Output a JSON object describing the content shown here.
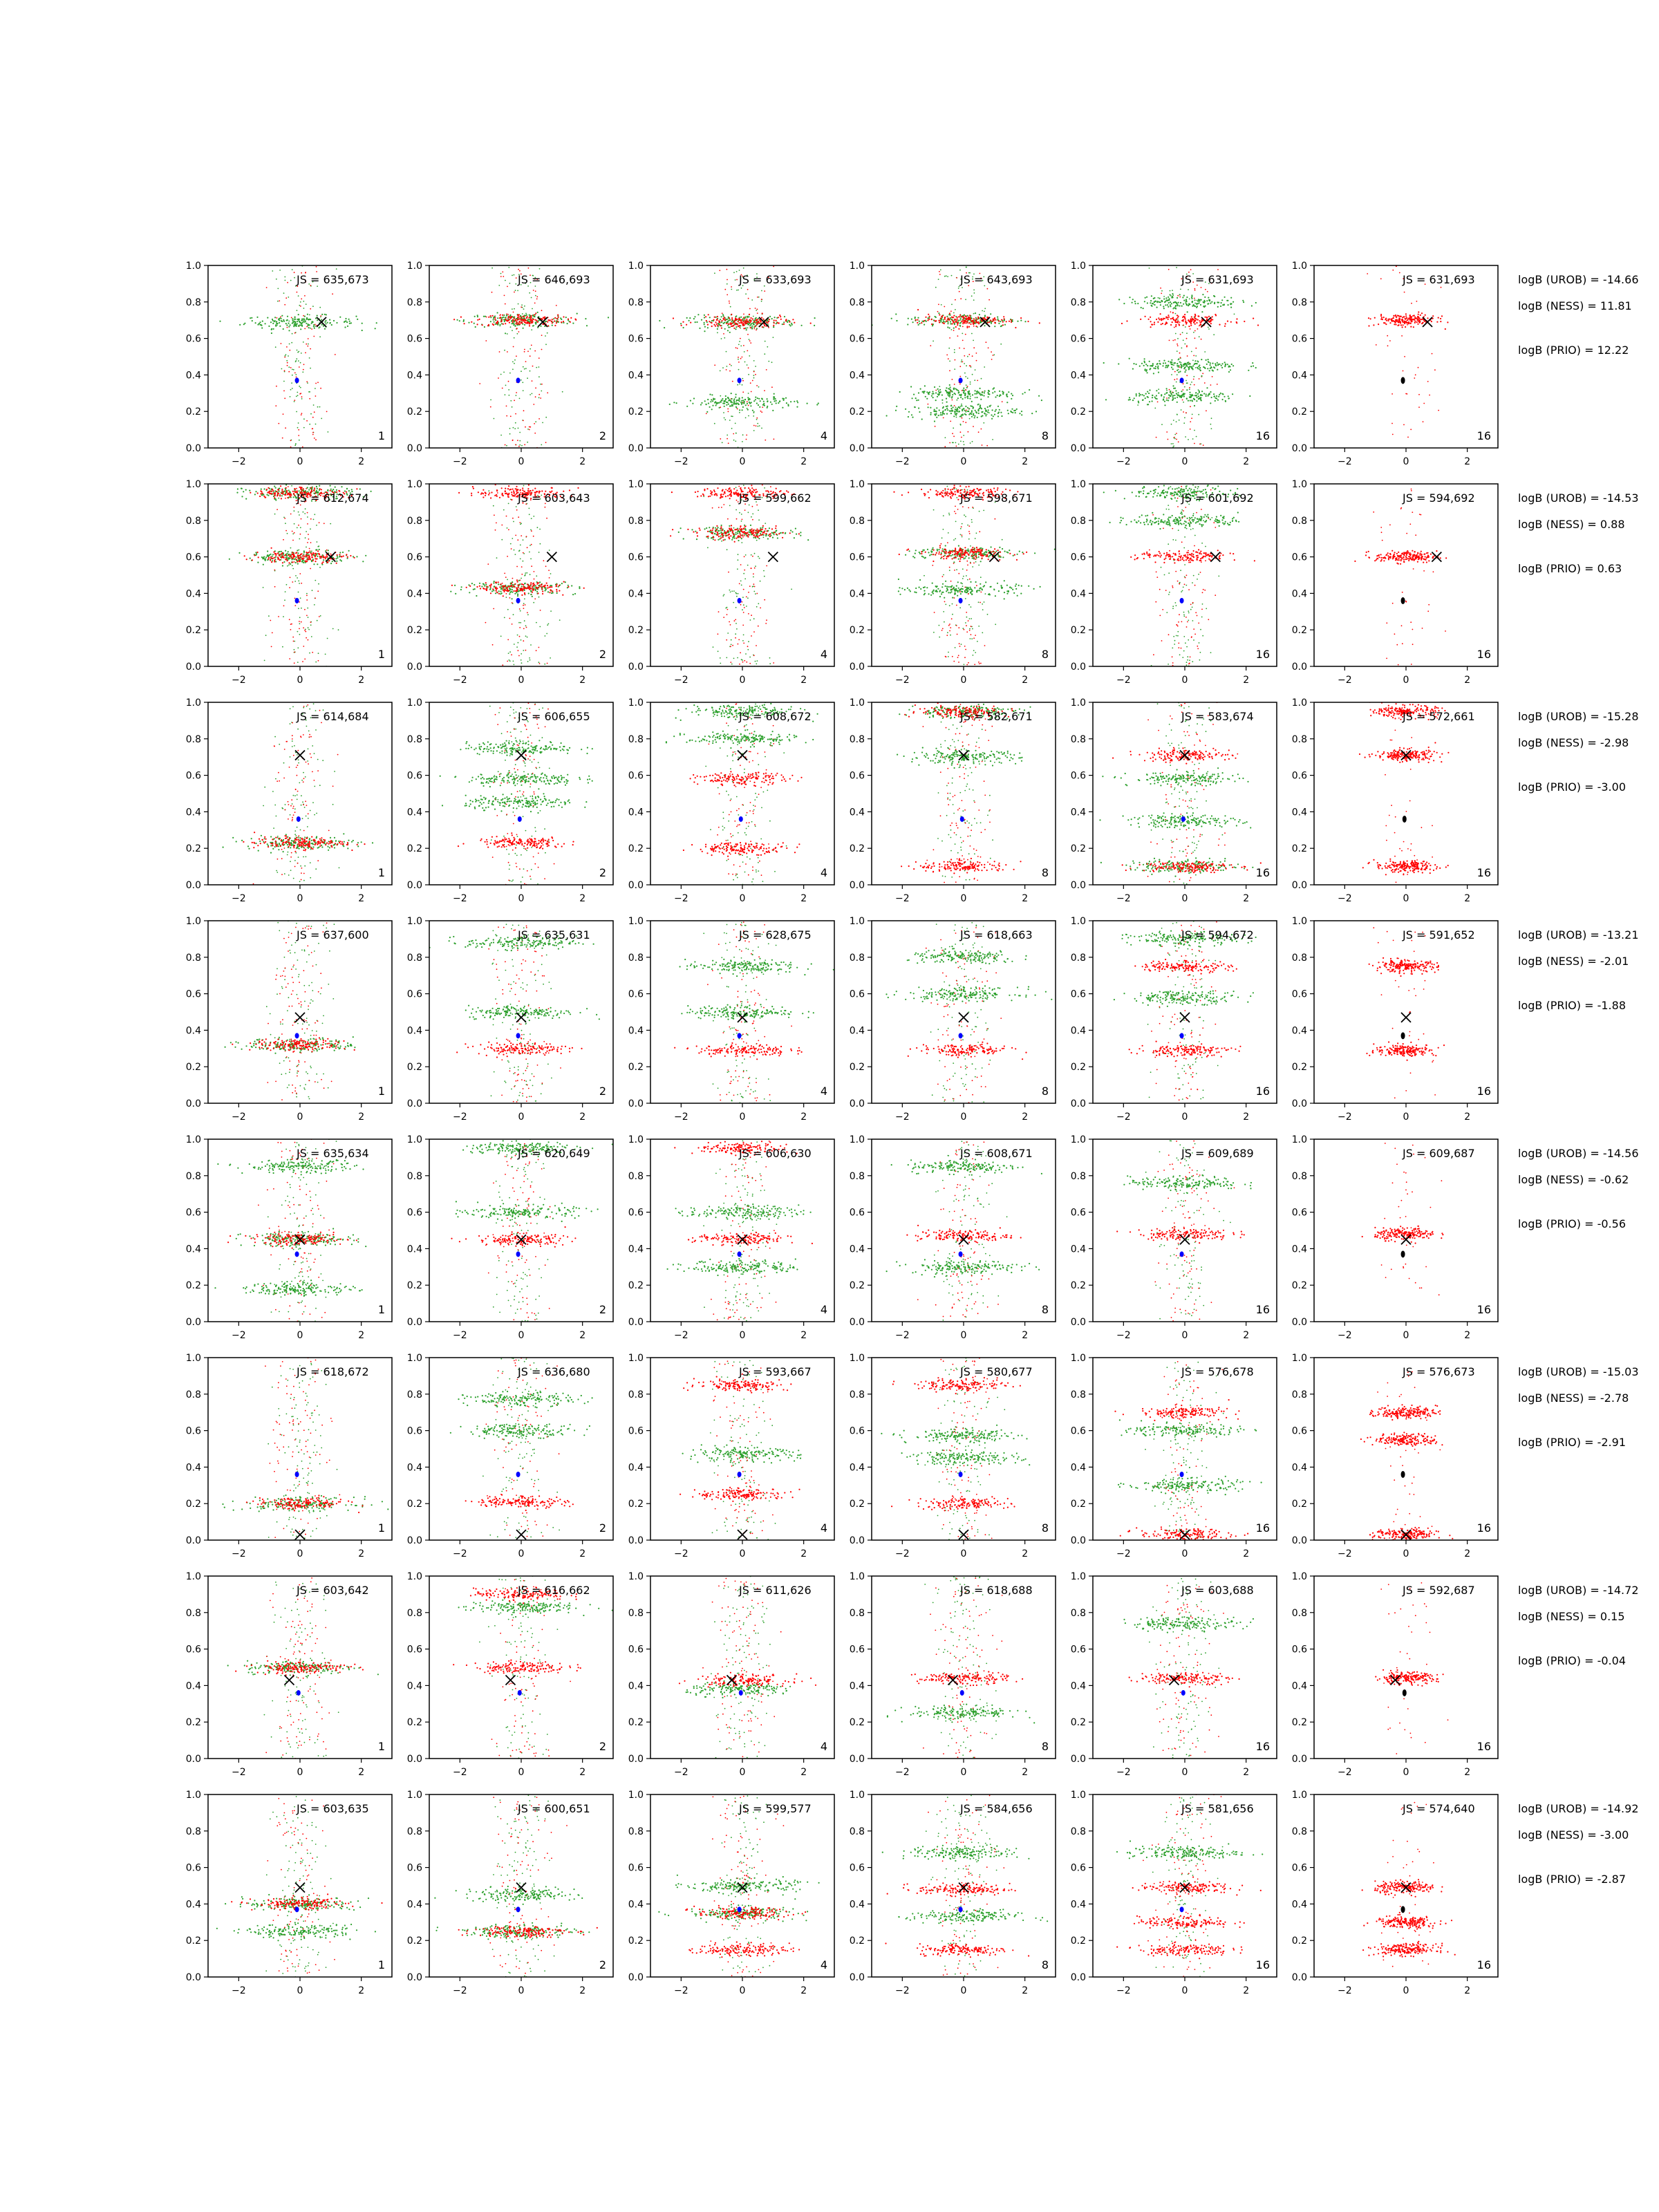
{
  "chart_data": {
    "type": "scatter",
    "grid_layout": {
      "rows": 8,
      "cols": 6
    },
    "xlim": [
      -3,
      3
    ],
    "ylim": [
      0,
      1
    ],
    "x_ticks": [
      "−2",
      "0",
      "2"
    ],
    "y_ticks": [
      "0.0",
      "0.2",
      "0.4",
      "0.6",
      "0.8",
      "1.0"
    ],
    "grid": false,
    "colors": {
      "green": "#2ca02c",
      "red": "#ff0000",
      "blue": "#0000ff",
      "black": "#000000"
    },
    "rows": [
      {
        "target": {
          "x": 0.7,
          "y": 0.69
        },
        "blue_point": {
          "x": -0.1,
          "y": 0.37
        },
        "panels": [
          {
            "js": "JS = 635,673",
            "n": "1",
            "red_bands": [],
            "green_bands": [
              0.69
            ]
          },
          {
            "js": "JS = 646,693",
            "n": "2",
            "red_bands": [
              0.7
            ],
            "green_bands": [
              0.7
            ]
          },
          {
            "js": "JS = 633,693",
            "n": "4",
            "red_bands": [
              0.69
            ],
            "green_bands": [
              0.69,
              0.25
            ]
          },
          {
            "js": "JS = 643,693",
            "n": "8",
            "red_bands": [
              0.7
            ],
            "green_bands": [
              0.7,
              0.3,
              0.2
            ]
          },
          {
            "js": "JS = 631,693",
            "n": "16",
            "red_bands": [
              0.7
            ],
            "green_bands": [
              0.8,
              0.45,
              0.28
            ]
          },
          {
            "js": "JS = 631,693",
            "n": "16",
            "red_bands": [
              0.7
            ],
            "green_bands": []
          }
        ],
        "stats": {
          "urob": "logB (UROB) = -14.66",
          "ness": "logB (NESS) = 11.81",
          "prio": "logB (PRIO) = 12.22"
        }
      },
      {
        "target": {
          "x": 1.0,
          "y": 0.6
        },
        "blue_point": {
          "x": -0.1,
          "y": 0.36
        },
        "panels": [
          {
            "js": "JS = 612,674",
            "n": "1",
            "red_bands": [
              0.95,
              0.6
            ],
            "green_bands": [
              0.95,
              0.6
            ]
          },
          {
            "js": "JS = 603,643",
            "n": "2",
            "red_bands": [
              0.95,
              0.43
            ],
            "green_bands": [
              0.43
            ]
          },
          {
            "js": "JS = 599,662",
            "n": "4",
            "red_bands": [
              0.95,
              0.73
            ],
            "green_bands": [
              0.73
            ]
          },
          {
            "js": "JS = 598,671",
            "n": "8",
            "red_bands": [
              0.95,
              0.62
            ],
            "green_bands": [
              0.62,
              0.42
            ]
          },
          {
            "js": "JS = 601,692",
            "n": "16",
            "red_bands": [
              0.6
            ],
            "green_bands": [
              0.8,
              0.95
            ]
          },
          {
            "js": "JS = 594,692",
            "n": "16",
            "red_bands": [
              0.6
            ],
            "green_bands": []
          }
        ],
        "stats": {
          "urob": "logB (UROB) = -14.53",
          "ness": "logB (NESS) = 0.88",
          "prio": "logB (PRIO) = 0.63"
        }
      },
      {
        "target": {
          "x": 0.0,
          "y": 0.71
        },
        "blue_point": {
          "x": -0.05,
          "y": 0.36
        },
        "panels": [
          {
            "js": "JS = 614,684",
            "n": "1",
            "red_bands": [
              0.23
            ],
            "green_bands": [
              0.23
            ]
          },
          {
            "js": "JS = 606,655",
            "n": "2",
            "red_bands": [
              0.23
            ],
            "green_bands": [
              0.75,
              0.58,
              0.45
            ]
          },
          {
            "js": "JS = 608,672",
            "n": "4",
            "red_bands": [
              0.58,
              0.2
            ],
            "green_bands": [
              0.95,
              0.8
            ]
          },
          {
            "js": "JS = 582,671",
            "n": "8",
            "red_bands": [
              0.95,
              0.1
            ],
            "green_bands": [
              0.95,
              0.7
            ]
          },
          {
            "js": "JS = 583,674",
            "n": "16",
            "red_bands": [
              0.71,
              0.1
            ],
            "green_bands": [
              0.58,
              0.35,
              0.1
            ]
          },
          {
            "js": "JS = 572,661",
            "n": "16",
            "red_bands": [
              0.95,
              0.71,
              0.1
            ],
            "green_bands": []
          }
        ],
        "stats": {
          "urob": "logB (UROB) = -15.28",
          "ness": "logB (NESS) = -2.98",
          "prio": "logB (PRIO) = -3.00"
        }
      },
      {
        "target": {
          "x": 0.0,
          "y": 0.47
        },
        "blue_point": {
          "x": -0.1,
          "y": 0.37
        },
        "panels": [
          {
            "js": "JS = 637,600",
            "n": "1",
            "red_bands": [
              0.32
            ],
            "green_bands": [
              0.32
            ]
          },
          {
            "js": "JS = 635,631",
            "n": "2",
            "red_bands": [
              0.3
            ],
            "green_bands": [
              0.88,
              0.5
            ]
          },
          {
            "js": "JS = 628,675",
            "n": "4",
            "red_bands": [
              0.29
            ],
            "green_bands": [
              0.75,
              0.5
            ]
          },
          {
            "js": "JS = 618,663",
            "n": "8",
            "red_bands": [
              0.29
            ],
            "green_bands": [
              0.8,
              0.6
            ]
          },
          {
            "js": "JS = 594,672",
            "n": "16",
            "red_bands": [
              0.75,
              0.29
            ],
            "green_bands": [
              0.9,
              0.58
            ]
          },
          {
            "js": "JS = 591,652",
            "n": "16",
            "red_bands": [
              0.75,
              0.29
            ],
            "green_bands": []
          }
        ],
        "stats": {
          "urob": "logB (UROB) = -13.21",
          "ness": "logB (NESS) = -2.01",
          "prio": "logB (PRIO) = -1.88"
        }
      },
      {
        "target": {
          "x": 0.0,
          "y": 0.45
        },
        "blue_point": {
          "x": -0.1,
          "y": 0.37
        },
        "panels": [
          {
            "js": "JS = 635,634",
            "n": "1",
            "red_bands": [
              0.45
            ],
            "green_bands": [
              0.85,
              0.45,
              0.18
            ]
          },
          {
            "js": "JS = 620,649",
            "n": "2",
            "red_bands": [
              0.45
            ],
            "green_bands": [
              0.95,
              0.6
            ]
          },
          {
            "js": "JS = 606,630",
            "n": "4",
            "red_bands": [
              0.95,
              0.45
            ],
            "green_bands": [
              0.6,
              0.3
            ]
          },
          {
            "js": "JS = 608,671",
            "n": "8",
            "red_bands": [
              0.47
            ],
            "green_bands": [
              0.85,
              0.3
            ]
          },
          {
            "js": "JS = 609,689",
            "n": "16",
            "red_bands": [
              0.48
            ],
            "green_bands": [
              0.76
            ]
          },
          {
            "js": "JS = 609,687",
            "n": "16",
            "red_bands": [
              0.48
            ],
            "green_bands": []
          }
        ],
        "stats": {
          "urob": "logB (UROB) = -14.56",
          "ness": "logB (NESS) = -0.62",
          "prio": "logB (PRIO) = -0.56"
        }
      },
      {
        "target": {
          "x": 0.0,
          "y": 0.03
        },
        "blue_point": {
          "x": -0.1,
          "y": 0.36
        },
        "panels": [
          {
            "js": "JS = 618,672",
            "n": "1",
            "red_bands": [
              0.2
            ],
            "green_bands": [
              0.2
            ]
          },
          {
            "js": "JS = 636,680",
            "n": "2",
            "red_bands": [
              0.21
            ],
            "green_bands": [
              0.77,
              0.6
            ]
          },
          {
            "js": "JS = 593,667",
            "n": "4",
            "red_bands": [
              0.85,
              0.25
            ],
            "green_bands": [
              0.47
            ]
          },
          {
            "js": "JS = 580,677",
            "n": "8",
            "red_bands": [
              0.85,
              0.2
            ],
            "green_bands": [
              0.57,
              0.45
            ]
          },
          {
            "js": "JS = 576,678",
            "n": "16",
            "red_bands": [
              0.7,
              0.03
            ],
            "green_bands": [
              0.6,
              0.3
            ]
          },
          {
            "js": "JS = 576,673",
            "n": "16",
            "red_bands": [
              0.7,
              0.55,
              0.03
            ],
            "green_bands": []
          }
        ],
        "stats": {
          "urob": "logB (UROB) = -15.03",
          "ness": "logB (NESS) = -2.78",
          "prio": "logB (PRIO) = -2.91"
        }
      },
      {
        "target": {
          "x": -0.35,
          "y": 0.43
        },
        "blue_point": {
          "x": -0.05,
          "y": 0.36
        },
        "panels": [
          {
            "js": "JS = 603,642",
            "n": "1",
            "red_bands": [
              0.5
            ],
            "green_bands": [
              0.5
            ]
          },
          {
            "js": "JS = 616,662",
            "n": "2",
            "red_bands": [
              0.9,
              0.5
            ],
            "green_bands": [
              0.83
            ]
          },
          {
            "js": "JS = 611,626",
            "n": "4",
            "red_bands": [
              0.43
            ],
            "green_bands": [
              0.38
            ]
          },
          {
            "js": "JS = 618,688",
            "n": "8",
            "red_bands": [
              0.44
            ],
            "green_bands": [
              0.25
            ]
          },
          {
            "js": "JS = 603,688",
            "n": "16",
            "red_bands": [
              0.44
            ],
            "green_bands": [
              0.74
            ]
          },
          {
            "js": "JS = 592,687",
            "n": "16",
            "red_bands": [
              0.44
            ],
            "green_bands": []
          }
        ],
        "stats": {
          "urob": "logB (UROB) = -14.72",
          "ness": "logB (NESS) = 0.15",
          "prio": "logB (PRIO) = -0.04"
        }
      },
      {
        "target": {
          "x": 0.0,
          "y": 0.49
        },
        "blue_point": {
          "x": -0.1,
          "y": 0.37
        },
        "panels": [
          {
            "js": "JS = 603,635",
            "n": "1",
            "red_bands": [
              0.4
            ],
            "green_bands": [
              0.4,
              0.25
            ]
          },
          {
            "js": "JS = 600,651",
            "n": "2",
            "red_bands": [
              0.25
            ],
            "green_bands": [
              0.25,
              0.45
            ]
          },
          {
            "js": "JS = 599,577",
            "n": "4",
            "red_bands": [
              0.35,
              0.15
            ],
            "green_bands": [
              0.5,
              0.35
            ]
          },
          {
            "js": "JS = 584,656",
            "n": "8",
            "red_bands": [
              0.48,
              0.15
            ],
            "green_bands": [
              0.68,
              0.33
            ]
          },
          {
            "js": "JS = 581,656",
            "n": "16",
            "red_bands": [
              0.49,
              0.3,
              0.15
            ],
            "green_bands": [
              0.68
            ]
          },
          {
            "js": "JS = 574,640",
            "n": "16",
            "red_bands": [
              0.49,
              0.3,
              0.15
            ],
            "green_bands": []
          }
        ],
        "stats": {
          "urob": "logB (UROB) = -14.92",
          "ness": "logB (NESS) = -3.00",
          "prio": "logB (PRIO) = -2.87"
        }
      }
    ]
  }
}
